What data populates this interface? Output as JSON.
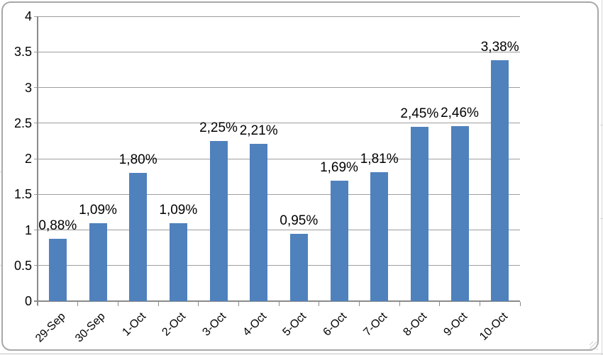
{
  "chart_data": {
    "type": "bar",
    "title": "",
    "xlabel": "",
    "ylabel": "",
    "categories": [
      "29-Sep",
      "30-Sep",
      "1-Oct",
      "2-Oct",
      "3-Oct",
      "4-Oct",
      "5-Oct",
      "6-Oct",
      "7-Oct",
      "8-Oct",
      "9-Oct",
      "10-Oct"
    ],
    "values": [
      0.88,
      1.09,
      1.8,
      1.09,
      2.25,
      2.21,
      0.95,
      1.69,
      1.81,
      2.45,
      2.46,
      3.38
    ],
    "data_labels": [
      "0,88%",
      "1,09%",
      "1,80%",
      "1,09%",
      "2,25%",
      "2,21%",
      "0,95%",
      "1,69%",
      "1,81%",
      "2,45%",
      "2,46%",
      "3,38%"
    ],
    "ylim": [
      0,
      4
    ],
    "ytick_interval": 0.5,
    "ytick_labels": [
      "0",
      "0.5",
      "1",
      "1.5",
      "2",
      "2.5",
      "3",
      "3.5",
      "4"
    ],
    "grid": true,
    "legend": false,
    "colors": {
      "bar": "#4f81bd",
      "gridline": "#9d9d9d",
      "axis": "#8a8a8a",
      "text": "#000000",
      "chart_border": "#a8a8a8"
    }
  }
}
